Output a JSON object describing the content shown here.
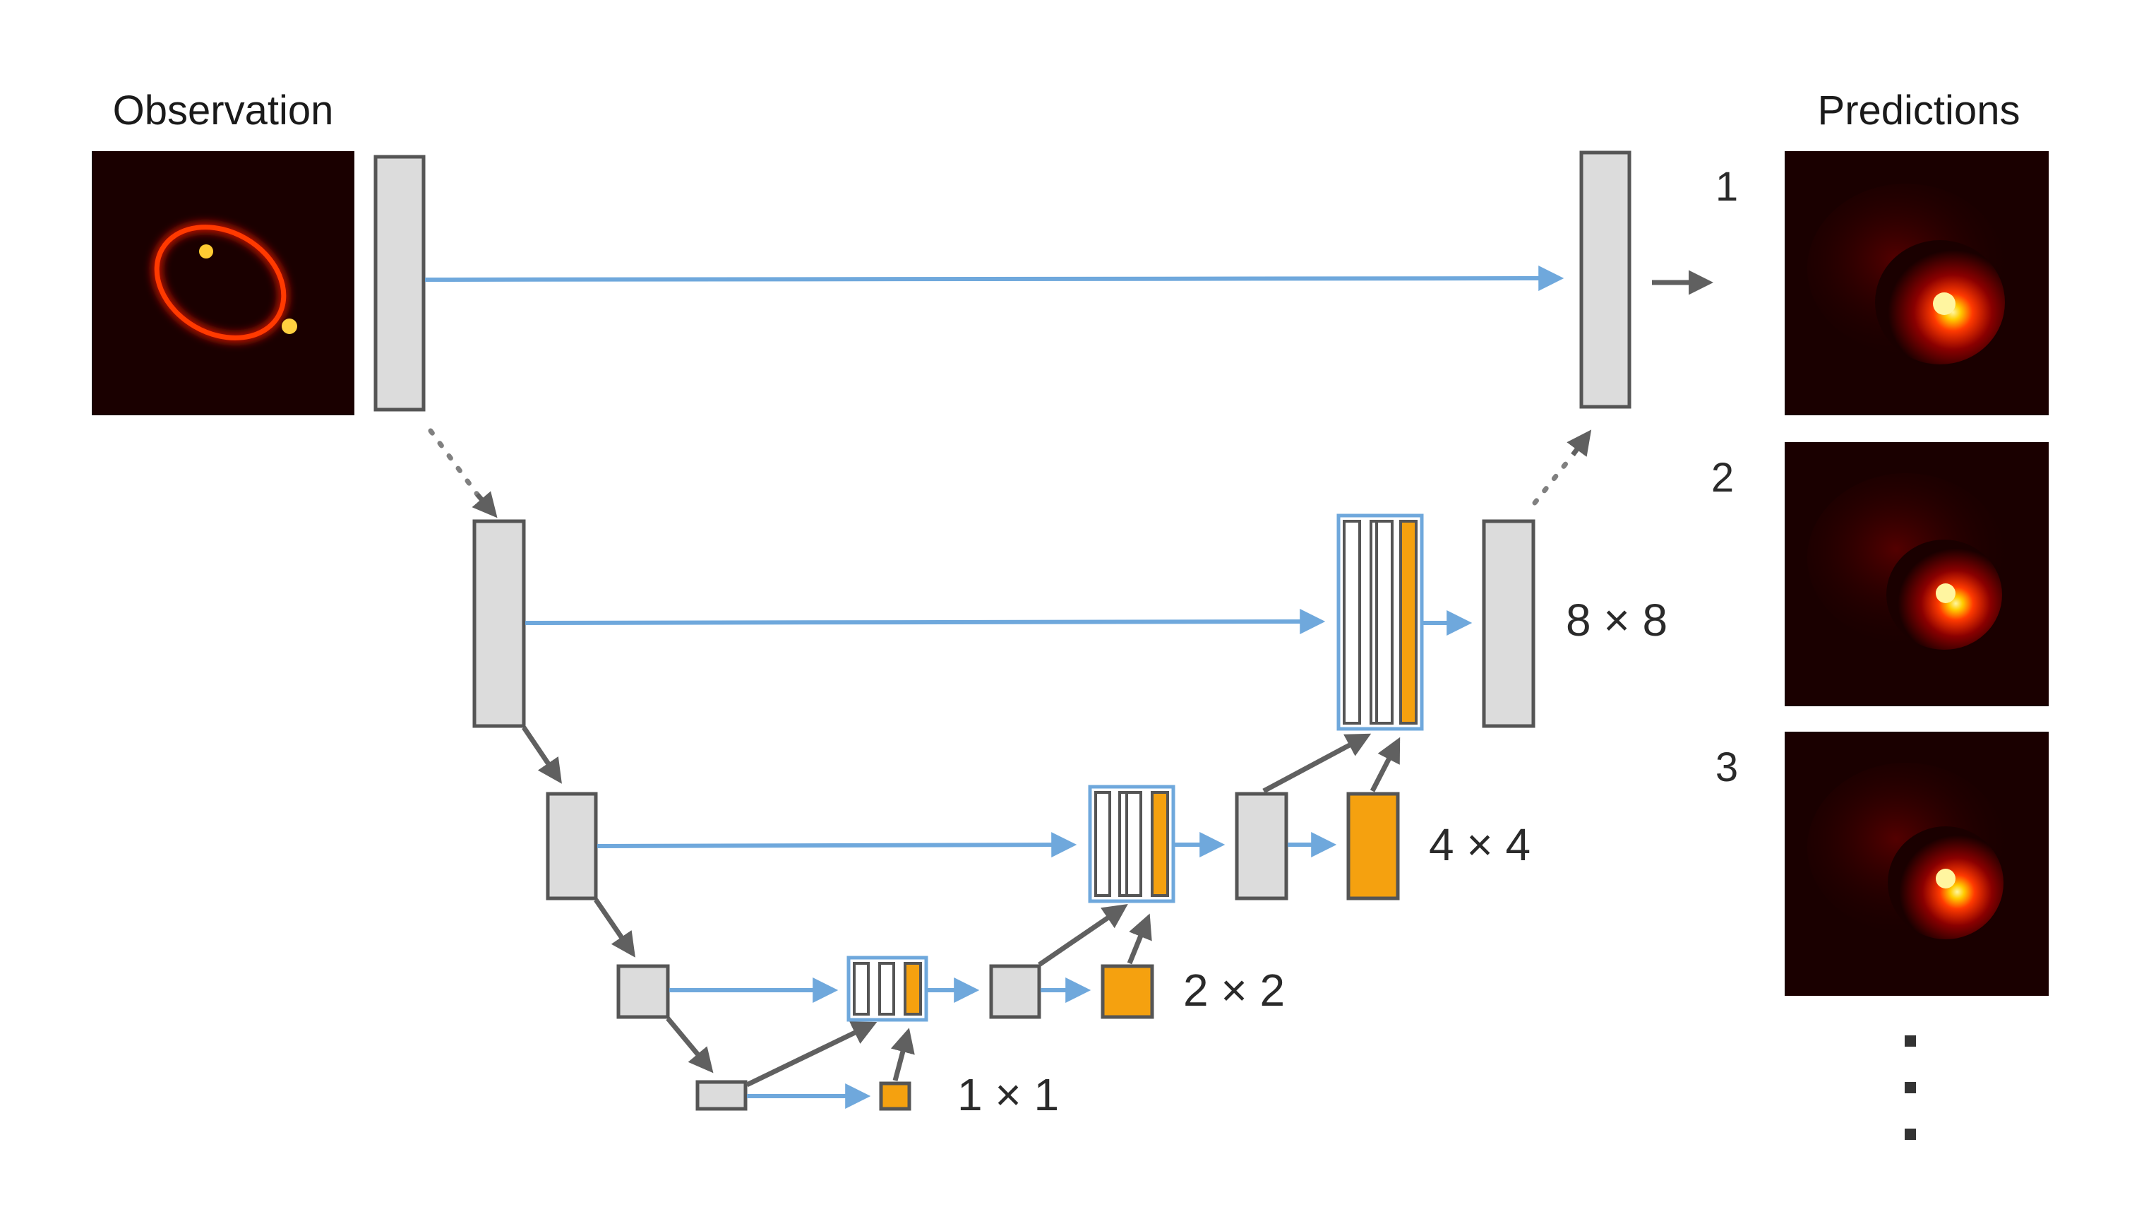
{
  "labels": {
    "observation": "Observation",
    "predictions": "Predictions",
    "prediction_numbers": [
      "1",
      "2",
      "3"
    ],
    "sizes": {
      "s8": "8 × 8",
      "s4": "4 × 4",
      "s2": "2 × 2",
      "s1": "1 × 1"
    }
  },
  "colors": {
    "skip_arrow": "#6fa8dc",
    "flow_arrow": "#606060",
    "block_fill": "#dcdcdc",
    "new_feature": "#f5a10f",
    "image_background": "#1a0000"
  },
  "icons": {
    "continuation": "vertical-ellipsis"
  }
}
